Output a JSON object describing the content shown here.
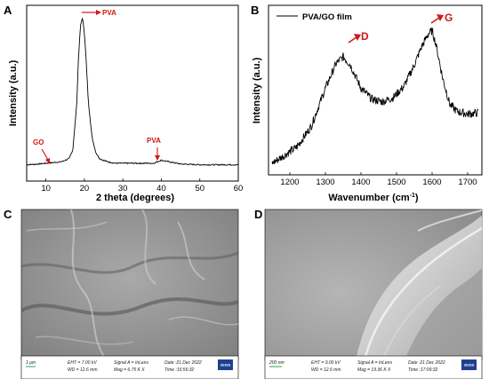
{
  "panels": {
    "a": "A",
    "b": "B",
    "c": "C",
    "d": "D"
  },
  "chart_data": [
    {
      "type": "line",
      "panel": "A",
      "xlabel": "2 theta (degrees)",
      "ylabel": "Intensity (a.u.)",
      "xlim": [
        5,
        60
      ],
      "xticks": [
        "10",
        "20",
        "30",
        "40",
        "50",
        "60"
      ],
      "series": [
        {
          "x": [
            5,
            8,
            10,
            12,
            14,
            16,
            17,
            18,
            18.5,
            19,
            19.5,
            20,
            20.5,
            21,
            22,
            23,
            24,
            26,
            28,
            30,
            35,
            38,
            40,
            42,
            45,
            50,
            55,
            60
          ],
          "values": [
            0.02,
            0.025,
            0.03,
            0.035,
            0.04,
            0.06,
            0.12,
            0.42,
            0.75,
            0.95,
            1.0,
            0.9,
            0.7,
            0.45,
            0.2,
            0.1,
            0.06,
            0.04,
            0.03,
            0.03,
            0.03,
            0.03,
            0.05,
            0.04,
            0.025,
            0.02,
            0.02,
            0.02
          ]
        }
      ],
      "annotations": [
        {
          "label": "PVA",
          "x": 19.5
        },
        {
          "label": "GO",
          "x": 10.5
        },
        {
          "label": "PVA",
          "x": 40.5
        }
      ]
    },
    {
      "type": "line",
      "panel": "B",
      "xlabel": "Wavenumber (cm",
      "xlabel_sup": "-1",
      "xlabel_end": ")",
      "ylabel": "Intensity (a.u.)",
      "xlim": [
        1140,
        1740
      ],
      "xticks": [
        "1200",
        "1300",
        "1400",
        "1500",
        "1600",
        "1700"
      ],
      "legend": "PVA/GO film",
      "series": [
        {
          "name": "PVA/GO film",
          "x": [
            1150,
            1180,
            1220,
            1260,
            1300,
            1330,
            1350,
            1370,
            1400,
            1430,
            1460,
            1490,
            1520,
            1550,
            1570,
            1590,
            1600,
            1610,
            1630,
            1650,
            1670,
            1700,
            1730
          ],
          "values": [
            0.0,
            0.05,
            0.12,
            0.27,
            0.55,
            0.73,
            0.78,
            0.72,
            0.55,
            0.47,
            0.45,
            0.48,
            0.56,
            0.72,
            0.85,
            0.95,
            0.97,
            0.88,
            0.62,
            0.43,
            0.38,
            0.36,
            0.37
          ]
        }
      ],
      "annotations": [
        {
          "label": "D",
          "x": 1355
        },
        {
          "label": "G",
          "x": 1600
        }
      ]
    }
  ],
  "sem": {
    "c": {
      "scale": "1 μm",
      "eht": "EHT = 7.00 kV",
      "wd": "WD = 12.6 mm",
      "signal": "Signal A = InLens",
      "mag": "Mag = 6.75 K X",
      "date": "Date :21 Dec 2022",
      "time": "Time :16:56:32",
      "logo": "ZEISS"
    },
    "d": {
      "scale": "200 nm",
      "eht": "EHT = 9.00 kV",
      "wd": "WD = 12.6 mm",
      "signal": "Signal A = InLens",
      "mag": "Mag = 19.36 K X",
      "date": "Date :21 Dec 2022",
      "time": "Time :17:09:32",
      "logo": "ZEISS"
    }
  }
}
